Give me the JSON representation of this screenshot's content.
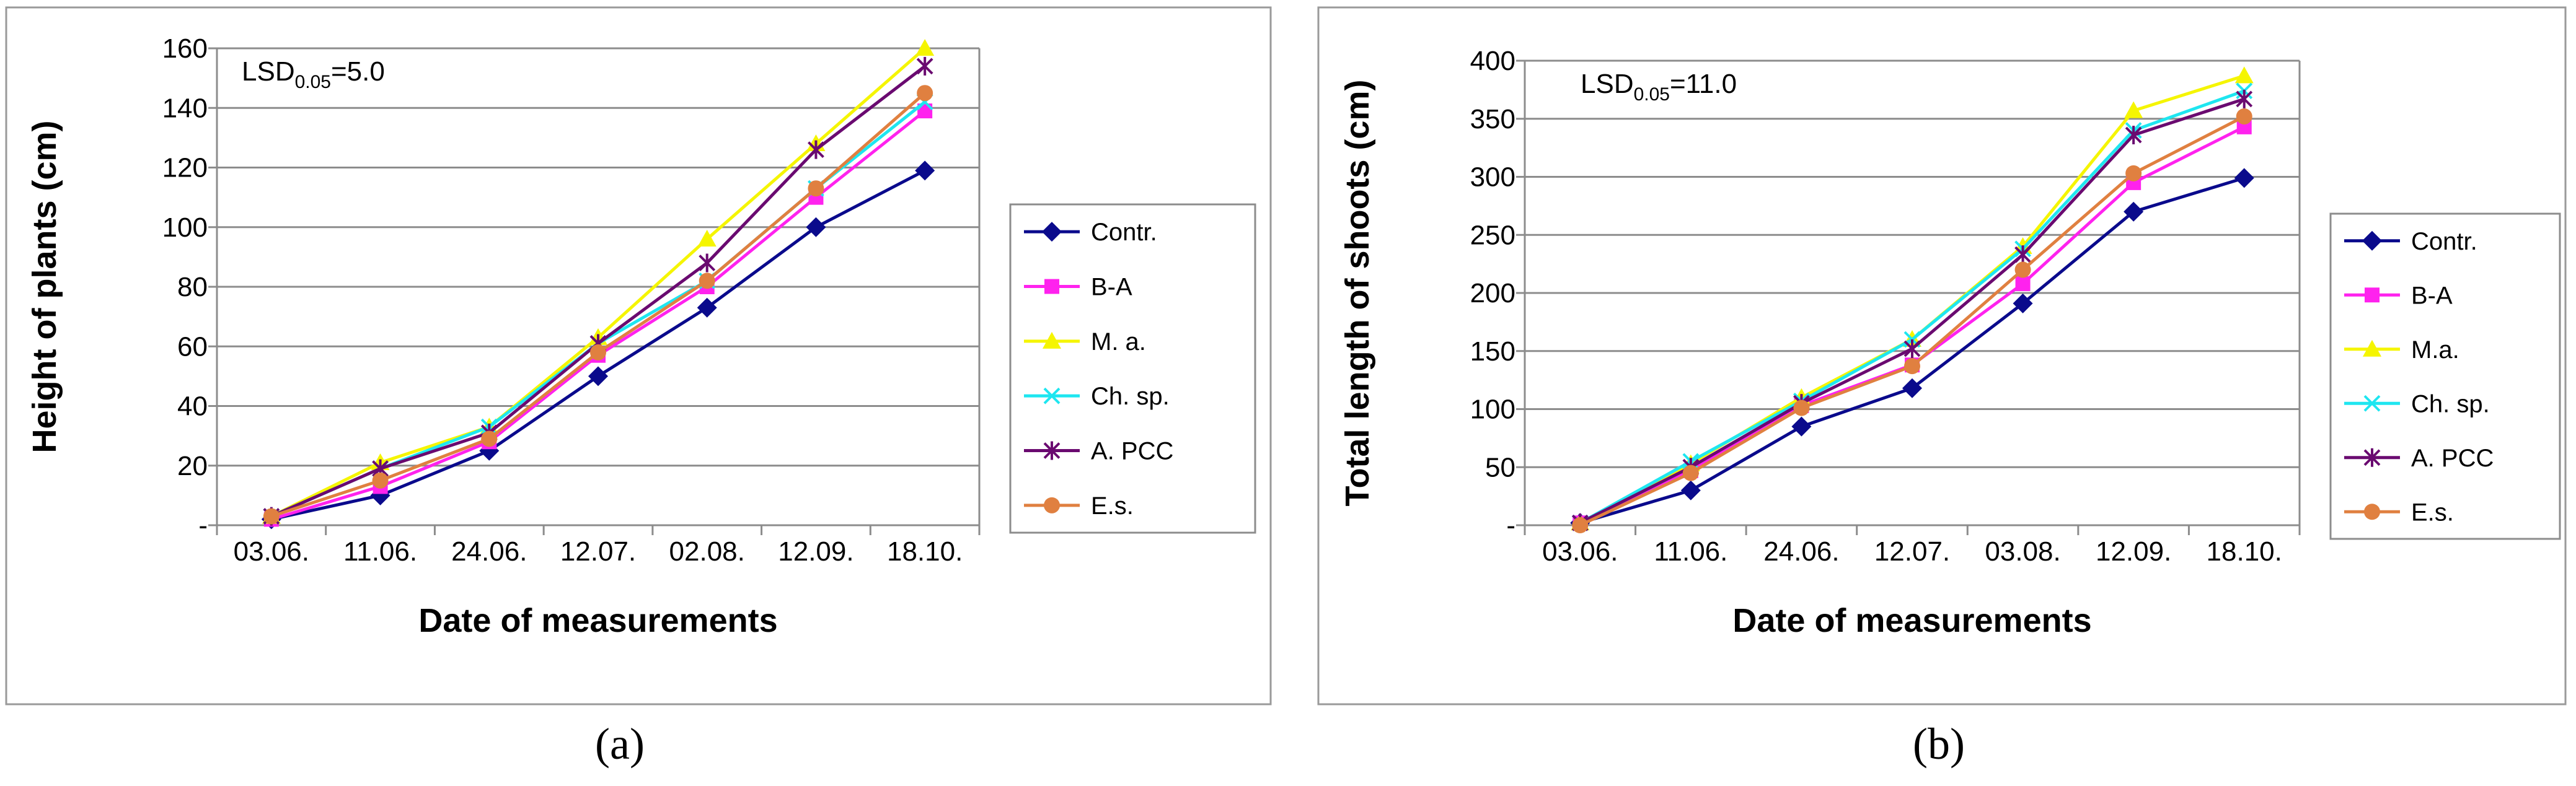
{
  "colors": {
    "Contr.": "#0a0a8c",
    "B-A": "#ff22ee",
    "M. a.": "#f5f500",
    "Ch. sp.": "#1ee6f0",
    "A. PCC": "#6a0a70",
    "E.s.": "#e08040"
  },
  "chart_data": [
    {
      "panel": "a",
      "caption": "(a)",
      "type": "line",
      "title": "",
      "annotation_prefix": "LSD",
      "annotation_sub": "0.05",
      "annotation_value": "=5.0",
      "xlabel": "Date of measurements",
      "ylabel": "Height of plants (cm)",
      "ylim": [
        0,
        160
      ],
      "yticks": [
        0,
        20,
        40,
        60,
        80,
        100,
        120,
        140,
        160
      ],
      "ytick_labels": [
        "-",
        "20",
        "40",
        "60",
        "80",
        "100",
        "120",
        "140",
        "160"
      ],
      "categories": [
        "03.06.",
        "11.06.",
        "24.06.",
        "12.07.",
        "02.08.",
        "12.09.",
        "18.10."
      ],
      "grid": "horizontal",
      "legend_position": "right",
      "series": [
        {
          "name": "Contr.",
          "color_key": "Contr.",
          "marker": "diamond",
          "values": [
            2,
            10,
            25,
            50,
            73,
            100,
            119
          ]
        },
        {
          "name": "B-A",
          "color_key": "B-A",
          "marker": "square",
          "values": [
            2,
            13,
            28,
            57,
            80,
            110,
            139
          ]
        },
        {
          "name": "M. a.",
          "color_key": "M. a.",
          "marker": "triangle",
          "values": [
            3,
            21,
            33,
            63,
            96,
            128,
            160
          ]
        },
        {
          "name": "Ch. sp.",
          "color_key": "Ch. sp.",
          "marker": "x",
          "values": [
            3,
            19,
            33,
            61,
            82,
            113,
            142
          ]
        },
        {
          "name": "A. PCC",
          "color_key": "A. PCC",
          "marker": "star",
          "values": [
            3,
            19,
            31,
            61,
            88,
            126,
            154
          ]
        },
        {
          "name": "E.s.",
          "color_key": "E.s.",
          "marker": "circle",
          "values": [
            3,
            15,
            29,
            58,
            82,
            113,
            145
          ]
        }
      ]
    },
    {
      "panel": "b",
      "caption": "(b)",
      "type": "line",
      "title": "",
      "annotation_prefix": "LSD",
      "annotation_sub": "0.05",
      "annotation_value": "=11.0",
      "xlabel": "Date of measurements",
      "ylabel": "Total length of shoots (cm)",
      "ylim": [
        0,
        400
      ],
      "yticks": [
        0,
        50,
        100,
        150,
        200,
        250,
        300,
        350,
        400
      ],
      "ytick_labels": [
        "-",
        "50",
        "100",
        "150",
        "200",
        "250",
        "300",
        "350",
        "400"
      ],
      "categories": [
        "03.06.",
        "11.06.",
        "24.06.",
        "12.07.",
        "03.08.",
        "12.09.",
        "18.10."
      ],
      "grid": "horizontal",
      "legend_position": "right",
      "series": [
        {
          "name": "Contr.",
          "color_key": "Contr.",
          "marker": "diamond",
          "values": [
            2,
            30,
            85,
            118,
            191,
            270,
            299
          ]
        },
        {
          "name": "B-A",
          "color_key": "B-A",
          "marker": "square",
          "values": [
            2,
            47,
            103,
            138,
            208,
            295,
            343
          ]
        },
        {
          "name": "M.a.",
          "color_key": "M. a.",
          "marker": "triangle",
          "values": [
            2,
            53,
            110,
            160,
            240,
            357,
            387
          ]
        },
        {
          "name": "Ch. sp.",
          "color_key": "Ch. sp.",
          "marker": "x",
          "values": [
            2,
            55,
            107,
            160,
            238,
            340,
            374
          ]
        },
        {
          "name": "A. PCC",
          "color_key": "A. PCC",
          "marker": "star",
          "values": [
            2,
            50,
            105,
            152,
            233,
            336,
            367
          ]
        },
        {
          "name": "E.s.",
          "color_key": "E.s.",
          "marker": "circle",
          "values": [
            0,
            45,
            101,
            137,
            220,
            303,
            352
          ]
        }
      ]
    }
  ]
}
